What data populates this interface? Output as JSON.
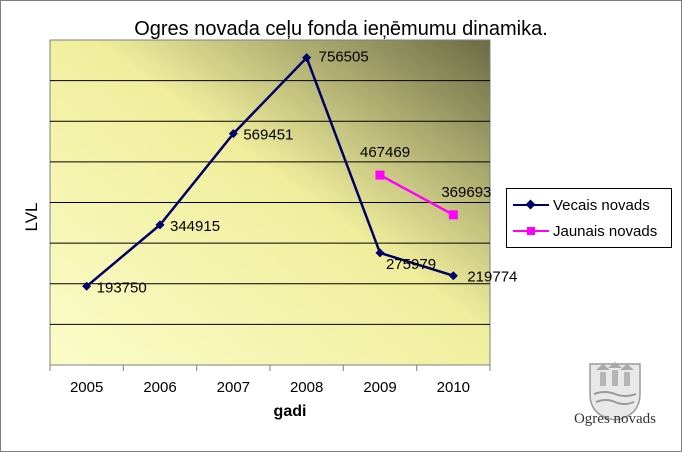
{
  "chart_data": {
    "type": "line",
    "title": "Ogres novada ceļu fonda ieņēmumu dinamika.",
    "xlabel": "gadi",
    "ylabel": "LVL",
    "categories": [
      "2005",
      "2006",
      "2007",
      "2008",
      "2009",
      "2010"
    ],
    "ylim": [
      0,
      800000
    ],
    "grid": true,
    "legend_position": "right",
    "series": [
      {
        "name": "Vecais novads",
        "color": "#000066",
        "marker": "diamond",
        "x": [
          "2005",
          "2006",
          "2007",
          "2008",
          "2009",
          "2010"
        ],
        "values": [
          193750,
          344915,
          569451,
          756505,
          275979,
          219774
        ],
        "labels": [
          "193750",
          "344915",
          "569451",
          "756505",
          "275979",
          "219774"
        ]
      },
      {
        "name": "Jaunais novads",
        "color": "#ff00ff",
        "marker": "square",
        "x": [
          "2009",
          "2010"
        ],
        "values": [
          467469,
          369693
        ],
        "labels": [
          "467469",
          "369693"
        ]
      }
    ]
  },
  "logo": {
    "text": "Ogres novads"
  }
}
